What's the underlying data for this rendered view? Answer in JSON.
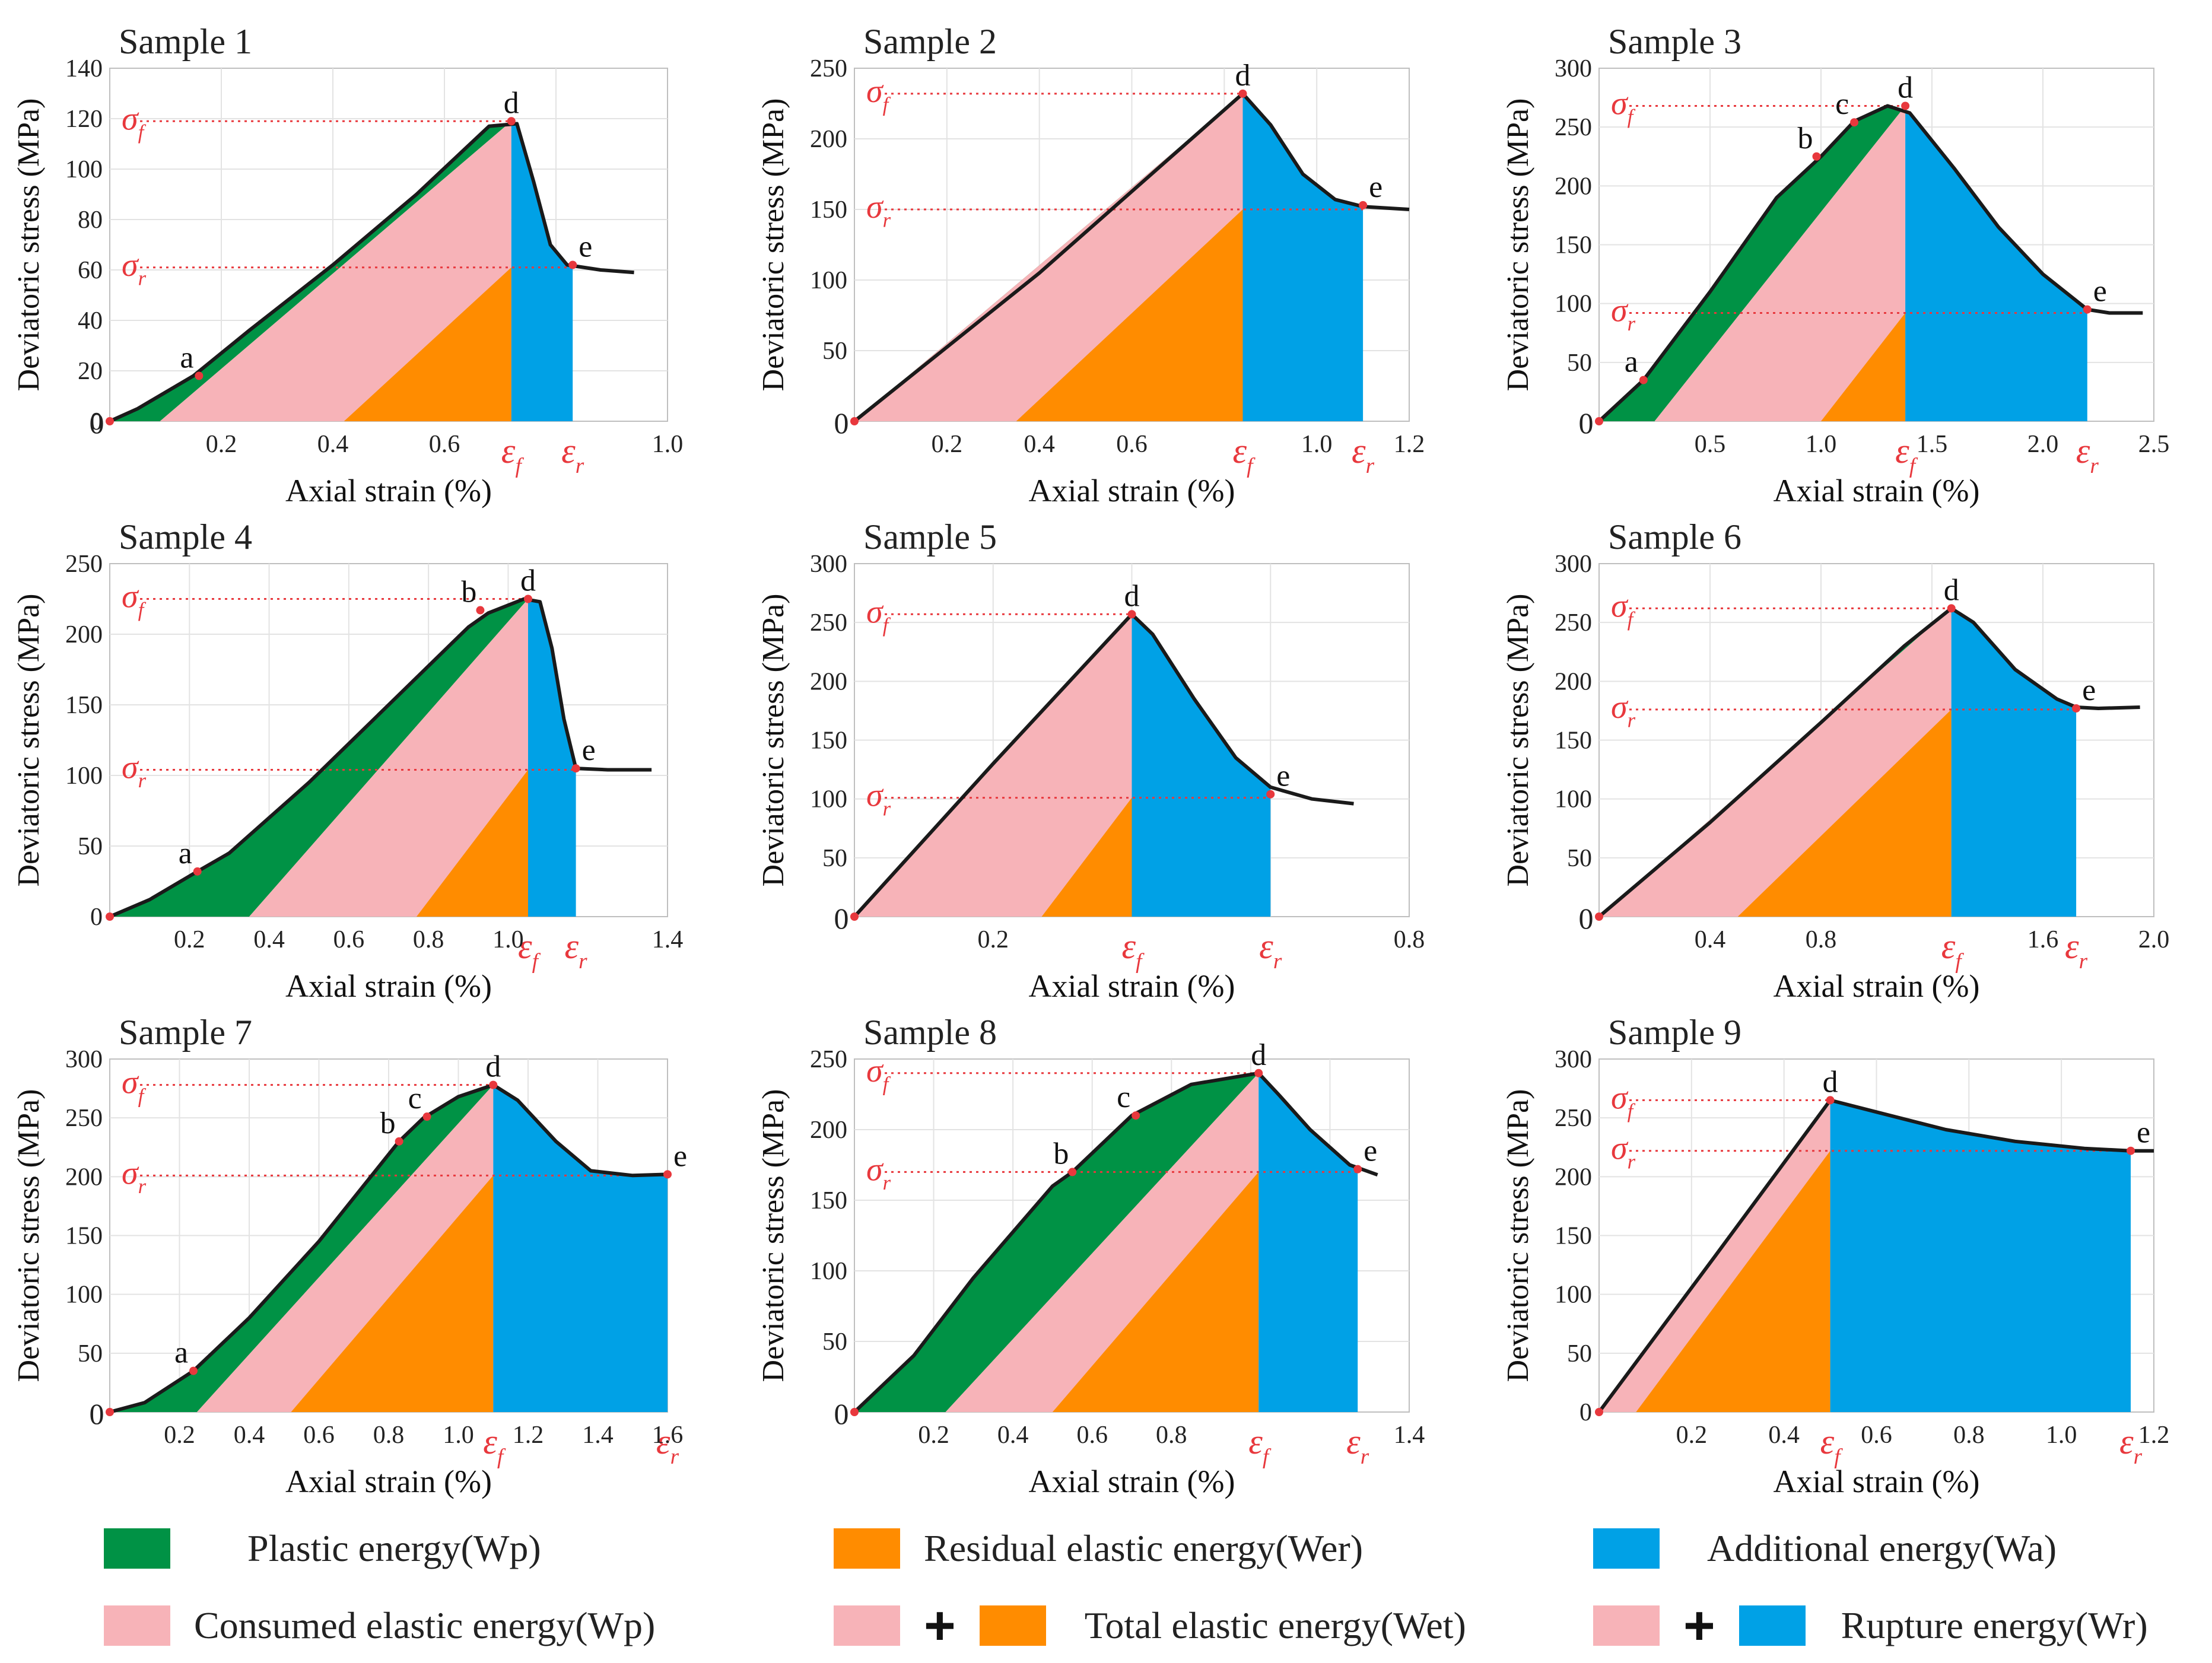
{
  "colors": {
    "plastic": "#009245",
    "consumed": "#f7b3b8",
    "residual": "#ff8c00",
    "additional": "#00a1e6",
    "curve": "#1a1a1a",
    "annotation": "#e8383d"
  },
  "chart_data": [
    {
      "type": "area",
      "title": "Sample 1",
      "xlabel": "Axial strain (%)",
      "ylabel": "Deviatoric stress (MPa)",
      "xlim": [
        0,
        1.0
      ],
      "ylim": [
        0,
        140
      ],
      "xticks": [
        0.2,
        0.4,
        0.6,
        0.8,
        1.0
      ],
      "xtick_labels": [
        "0.2",
        "0.4",
        "0.6",
        "",
        "1.0"
      ],
      "yticks": [
        0,
        20,
        40,
        60,
        80,
        100,
        120,
        140
      ],
      "origin_label": "0",
      "curve": [
        [
          0,
          0
        ],
        [
          0.05,
          5
        ],
        [
          0.15,
          18
        ],
        [
          0.25,
          36
        ],
        [
          0.4,
          62
        ],
        [
          0.55,
          90
        ],
        [
          0.68,
          117
        ],
        [
          0.73,
          118
        ],
        [
          0.76,
          95
        ],
        [
          0.79,
          70
        ],
        [
          0.82,
          62
        ],
        [
          0.88,
          60
        ],
        [
          0.94,
          59
        ]
      ],
      "eps_f": 0.72,
      "sigma_f": 119,
      "eps_r": 0.83,
      "sigma_r": 61,
      "plastic_boundary": [
        [
          0.09,
          0
        ],
        [
          0.72,
          119
        ]
      ],
      "residual_start": 0.42,
      "points": [
        {
          "label": "a",
          "x": 0.16,
          "y": 18
        },
        {
          "label": "d",
          "x": 0.72,
          "y": 119
        },
        {
          "label": "e",
          "x": 0.83,
          "y": 62
        }
      ],
      "annotations": {
        "sigma_f": "σ",
        "sigma_f_sub": "f",
        "sigma_r": "σ",
        "sigma_r_sub": "r",
        "eps_f": "ε",
        "eps_f_sub": "f",
        "eps_r": "ε",
        "eps_r_sub": "r"
      }
    },
    {
      "type": "area",
      "title": "Sample 2",
      "xlabel": "Axial strain (%)",
      "ylabel": "Deviatoric stress (MPa)",
      "xlim": [
        0,
        1.2
      ],
      "ylim": [
        0,
        250
      ],
      "xticks": [
        0.2,
        0.4,
        0.6,
        0.8,
        1.0,
        1.2
      ],
      "xtick_labels": [
        "0.2",
        "0.4",
        "0.6",
        "",
        "1.0",
        "1.2"
      ],
      "yticks": [
        50,
        100,
        150,
        200,
        250
      ],
      "origin_label": "0",
      "curve": [
        [
          0,
          0
        ],
        [
          0.4,
          105
        ],
        [
          0.84,
          232
        ],
        [
          0.9,
          210
        ],
        [
          0.97,
          175
        ],
        [
          1.04,
          157
        ],
        [
          1.1,
          152
        ],
        [
          1.2,
          150
        ]
      ],
      "eps_f": 0.84,
      "sigma_f": 232,
      "eps_r": 1.1,
      "sigma_r": 150,
      "plastic_boundary": [
        [
          0,
          0
        ],
        [
          0.84,
          232
        ]
      ],
      "residual_start": 0.35,
      "points": [
        {
          "label": "d",
          "x": 0.84,
          "y": 232
        },
        {
          "label": "e",
          "x": 1.1,
          "y": 153
        }
      ],
      "annotations": {
        "sigma_f": "σ",
        "sigma_f_sub": "f",
        "sigma_r": "σ",
        "sigma_r_sub": "r",
        "eps_f": "ε",
        "eps_f_sub": "f",
        "eps_r": "ε",
        "eps_r_sub": "r"
      }
    },
    {
      "type": "area",
      "title": "Sample 3",
      "xlabel": "Axial strain (%)",
      "ylabel": "Deviatoric stress (MPa)",
      "xlim": [
        0,
        2.5
      ],
      "ylim": [
        0,
        300
      ],
      "xticks": [
        0.5,
        1.0,
        1.5,
        2.0,
        2.5
      ],
      "xtick_labels": [
        "0.5",
        "1.0",
        "1.5",
        "2.0",
        "2.5"
      ],
      "yticks": [
        50,
        100,
        150,
        200,
        250,
        300
      ],
      "origin_label": "0",
      "curve": [
        [
          0,
          0
        ],
        [
          0.2,
          35
        ],
        [
          0.5,
          110
        ],
        [
          0.8,
          190
        ],
        [
          1.0,
          225
        ],
        [
          1.15,
          255
        ],
        [
          1.3,
          268
        ],
        [
          1.4,
          262
        ],
        [
          1.6,
          215
        ],
        [
          1.8,
          165
        ],
        [
          2.0,
          125
        ],
        [
          2.2,
          95
        ],
        [
          2.3,
          92
        ],
        [
          2.45,
          92
        ]
      ],
      "eps_f": 1.38,
      "sigma_f": 268,
      "eps_r": 2.2,
      "sigma_r": 92,
      "plastic_boundary": [
        [
          0.25,
          0
        ],
        [
          1.38,
          268
        ]
      ],
      "residual_start": 1.0,
      "points": [
        {
          "label": "a",
          "x": 0.2,
          "y": 35
        },
        {
          "label": "b",
          "x": 0.98,
          "y": 225
        },
        {
          "label": "c",
          "x": 1.15,
          "y": 254
        },
        {
          "label": "d",
          "x": 1.38,
          "y": 268
        },
        {
          "label": "e",
          "x": 2.2,
          "y": 95
        }
      ],
      "annotations": {
        "sigma_f": "σ",
        "sigma_f_sub": "f",
        "sigma_r": "σ",
        "sigma_r_sub": "r",
        "eps_f": "ε",
        "eps_f_sub": "f",
        "eps_r": "ε",
        "eps_r_sub": "r"
      }
    },
    {
      "type": "area",
      "title": "Sample 4",
      "xlabel": "Axial strain (%)",
      "ylabel": "Deviatoric stress (MPa)",
      "xlim": [
        0,
        1.4
      ],
      "ylim": [
        0,
        250
      ],
      "xticks": [
        0.2,
        0.4,
        0.6,
        0.8,
        1.0,
        1.4
      ],
      "xtick_labels": [
        "0.2",
        "0.4",
        "0.6",
        "0.8",
        "1.0",
        "1.4"
      ],
      "yticks": [
        0,
        50,
        100,
        150,
        200,
        250
      ],
      "origin_label": "",
      "curve": [
        [
          0,
          0
        ],
        [
          0.1,
          12
        ],
        [
          0.22,
          32
        ],
        [
          0.3,
          45
        ],
        [
          0.5,
          95
        ],
        [
          0.7,
          150
        ],
        [
          0.9,
          205
        ],
        [
          0.95,
          215
        ],
        [
          1.04,
          225
        ],
        [
          1.08,
          223
        ],
        [
          1.11,
          190
        ],
        [
          1.14,
          140
        ],
        [
          1.17,
          105
        ],
        [
          1.25,
          104
        ],
        [
          1.36,
          104
        ]
      ],
      "eps_f": 1.05,
      "sigma_f": 225,
      "eps_r": 1.17,
      "sigma_r": 104,
      "plastic_boundary": [
        [
          0.35,
          0
        ],
        [
          1.05,
          225
        ]
      ],
      "residual_start": 0.77,
      "points": [
        {
          "label": "a",
          "x": 0.22,
          "y": 32
        },
        {
          "label": "b",
          "x": 0.93,
          "y": 217
        },
        {
          "label": "d",
          "x": 1.05,
          "y": 225
        },
        {
          "label": "e",
          "x": 1.17,
          "y": 105
        }
      ],
      "annotations": {
        "sigma_f": "σ",
        "sigma_f_sub": "f",
        "sigma_r": "σ",
        "sigma_r_sub": "r",
        "eps_f": "ε",
        "eps_f_sub": "f",
        "eps_r": "ε",
        "eps_r_sub": "r"
      }
    },
    {
      "type": "area",
      "title": "Sample 5",
      "xlabel": "Axial strain (%)",
      "ylabel": "Deviatoric stress (MPa)",
      "xlim": [
        0,
        0.8
      ],
      "ylim": [
        0,
        300
      ],
      "xticks": [
        0.2,
        0.4,
        0.6,
        0.8
      ],
      "xtick_labels": [
        "0.2",
        "",
        "",
        "0.8"
      ],
      "yticks": [
        50,
        100,
        150,
        200,
        250,
        300
      ],
      "origin_label": "0",
      "curve": [
        [
          0,
          0
        ],
        [
          0.2,
          130
        ],
        [
          0.4,
          257
        ],
        [
          0.43,
          240
        ],
        [
          0.49,
          185
        ],
        [
          0.55,
          135
        ],
        [
          0.6,
          110
        ],
        [
          0.66,
          100
        ],
        [
          0.72,
          96
        ]
      ],
      "eps_f": 0.4,
      "sigma_f": 257,
      "eps_r": 0.6,
      "sigma_r": 101,
      "plastic_boundary": [
        [
          0,
          0
        ],
        [
          0.4,
          257
        ]
      ],
      "residual_start": 0.27,
      "points": [
        {
          "label": "d",
          "x": 0.4,
          "y": 257
        },
        {
          "label": "e",
          "x": 0.6,
          "y": 104
        }
      ],
      "annotations": {
        "sigma_f": "σ",
        "sigma_f_sub": "f",
        "sigma_r": "σ",
        "sigma_r_sub": "r",
        "eps_f": "ε",
        "eps_f_sub": "f",
        "eps_r": "ε",
        "eps_r_sub": "r"
      }
    },
    {
      "type": "area",
      "title": "Sample 6",
      "xlabel": "Axial strain (%)",
      "ylabel": "Deviatoric stress (MPa)",
      "xlim": [
        0,
        2.0
      ],
      "ylim": [
        0,
        300
      ],
      "xticks": [
        0.4,
        0.8,
        1.2,
        1.6,
        2.0
      ],
      "xtick_labels": [
        "0.4",
        "0.8",
        "",
        "1.6",
        "2.0"
      ],
      "yticks": [
        50,
        100,
        150,
        200,
        250,
        300
      ],
      "origin_label": "0",
      "curve": [
        [
          0,
          0
        ],
        [
          0.4,
          80
        ],
        [
          0.8,
          165
        ],
        [
          1.1,
          230
        ],
        [
          1.27,
          262
        ],
        [
          1.35,
          250
        ],
        [
          1.5,
          210
        ],
        [
          1.65,
          185
        ],
        [
          1.72,
          178
        ],
        [
          1.8,
          177
        ],
        [
          1.95,
          178
        ]
      ],
      "eps_f": 1.27,
      "sigma_f": 262,
      "eps_r": 1.72,
      "sigma_r": 176,
      "plastic_boundary": [
        [
          0,
          0
        ],
        [
          1.27,
          262
        ]
      ],
      "residual_start": 0.5,
      "points": [
        {
          "label": "d",
          "x": 1.27,
          "y": 262
        },
        {
          "label": "e",
          "x": 1.72,
          "y": 177
        }
      ],
      "annotations": {
        "sigma_f": "σ",
        "sigma_f_sub": "f",
        "sigma_r": "σ",
        "sigma_r_sub": "r",
        "eps_f": "ε",
        "eps_f_sub": "f",
        "eps_r": "ε",
        "eps_r_sub": "r"
      }
    },
    {
      "type": "area",
      "title": "Sample 7",
      "xlabel": "Axial strain (%)",
      "ylabel": "Deviatoric stress (MPa)",
      "xlim": [
        0,
        1.6
      ],
      "ylim": [
        0,
        300
      ],
      "xticks": [
        0.2,
        0.4,
        0.6,
        0.8,
        1.0,
        1.2,
        1.4,
        1.6
      ],
      "xtick_labels": [
        "0.2",
        "0.4",
        "0.6",
        "0.8",
        "1.0",
        "1.2",
        "1.4",
        "1.6"
      ],
      "yticks": [
        50,
        100,
        150,
        200,
        250,
        300
      ],
      "origin_label": "0",
      "curve": [
        [
          0,
          0
        ],
        [
          0.1,
          8
        ],
        [
          0.24,
          35
        ],
        [
          0.4,
          80
        ],
        [
          0.6,
          145
        ],
        [
          0.83,
          230
        ],
        [
          0.9,
          250
        ],
        [
          1.0,
          268
        ],
        [
          1.1,
          278
        ],
        [
          1.17,
          265
        ],
        [
          1.28,
          230
        ],
        [
          1.38,
          205
        ],
        [
          1.5,
          201
        ],
        [
          1.6,
          202
        ]
      ],
      "eps_f": 1.1,
      "sigma_f": 278,
      "eps_r": 1.6,
      "sigma_r": 201,
      "plastic_boundary": [
        [
          0.25,
          0
        ],
        [
          1.1,
          278
        ]
      ],
      "residual_start": 0.52,
      "points": [
        {
          "label": "a",
          "x": 0.24,
          "y": 35
        },
        {
          "label": "b",
          "x": 0.83,
          "y": 230
        },
        {
          "label": "c",
          "x": 0.91,
          "y": 251
        },
        {
          "label": "d",
          "x": 1.1,
          "y": 278
        },
        {
          "label": "e",
          "x": 1.6,
          "y": 202
        }
      ],
      "annotations": {
        "sigma_f": "σ",
        "sigma_f_sub": "f",
        "sigma_r": "σ",
        "sigma_r_sub": "r",
        "eps_f": "ε",
        "eps_f_sub": "f",
        "eps_r": "ε",
        "eps_r_sub": "r"
      }
    },
    {
      "type": "area",
      "title": "Sample 8",
      "xlabel": "Axial strain (%)",
      "ylabel": "Deviatoric stress (MPa)",
      "xlim": [
        0,
        1.4
      ],
      "ylim": [
        0,
        250
      ],
      "xticks": [
        0.2,
        0.4,
        0.6,
        0.8,
        1.0,
        1.2,
        1.4
      ],
      "xtick_labels": [
        "0.2",
        "0.4",
        "0.6",
        "0.8",
        "",
        "",
        "1.4"
      ],
      "yticks": [
        50,
        100,
        150,
        200,
        250
      ],
      "origin_label": "0",
      "curve": [
        [
          0,
          0
        ],
        [
          0.15,
          40
        ],
        [
          0.3,
          95
        ],
        [
          0.5,
          160
        ],
        [
          0.55,
          170
        ],
        [
          0.7,
          210
        ],
        [
          0.85,
          232
        ],
        [
          1.02,
          240
        ],
        [
          1.07,
          225
        ],
        [
          1.15,
          200
        ],
        [
          1.25,
          175
        ],
        [
          1.32,
          168
        ]
      ],
      "eps_f": 1.02,
      "sigma_f": 240,
      "eps_r": 1.27,
      "sigma_r": 170,
      "plastic_boundary": [
        [
          0.23,
          0
        ],
        [
          1.02,
          240
        ]
      ],
      "residual_start": 0.5,
      "points": [
        {
          "label": "b",
          "x": 0.55,
          "y": 170
        },
        {
          "label": "c",
          "x": 0.71,
          "y": 210
        },
        {
          "label": "d",
          "x": 1.02,
          "y": 240
        },
        {
          "label": "e",
          "x": 1.27,
          "y": 172
        }
      ],
      "annotations": {
        "sigma_f": "σ",
        "sigma_f_sub": "f",
        "sigma_r": "σ",
        "sigma_r_sub": "r",
        "eps_f": "ε",
        "eps_f_sub": "f",
        "eps_r": "ε",
        "eps_r_sub": "r"
      }
    },
    {
      "type": "area",
      "title": "Sample 9",
      "xlabel": "Axial strain (%)",
      "ylabel": "Deviatoric stress (MPa)",
      "xlim": [
        0,
        1.2
      ],
      "ylim": [
        0,
        300
      ],
      "xticks": [
        0.2,
        0.4,
        0.6,
        0.8,
        1.0,
        1.2
      ],
      "xtick_labels": [
        "0.2",
        "0.4",
        "0.6",
        "0.8",
        "1.0",
        "1.2"
      ],
      "yticks": [
        0,
        50,
        100,
        150,
        200,
        250,
        300
      ],
      "origin_label": "",
      "curve": [
        [
          0,
          0
        ],
        [
          0.25,
          132
        ],
        [
          0.5,
          265
        ],
        [
          0.6,
          255
        ],
        [
          0.75,
          240
        ],
        [
          0.9,
          230
        ],
        [
          1.05,
          224
        ],
        [
          1.15,
          222
        ],
        [
          1.2,
          222
        ]
      ],
      "eps_f": 0.5,
      "sigma_f": 265,
      "eps_r": 1.15,
      "sigma_r": 222,
      "plastic_boundary": [
        [
          0,
          0
        ],
        [
          0.5,
          265
        ]
      ],
      "residual_start": 0.08,
      "points": [
        {
          "label": "d",
          "x": 0.5,
          "y": 265
        },
        {
          "label": "e",
          "x": 1.15,
          "y": 222
        }
      ],
      "annotations": {
        "sigma_f": "σ",
        "sigma_f_sub": "f",
        "sigma_r": "σ",
        "sigma_r_sub": "r",
        "eps_f": "ε",
        "eps_f_sub": "f",
        "eps_r": "ε",
        "eps_r_sub": "r"
      }
    }
  ],
  "legend": {
    "plastic": "Plastic energy(Wp)",
    "residual": "Residual elastic energy(Wer)",
    "additional": "Additional energy(Wa)",
    "consumed": "Consumed elastic energy(Wp)",
    "total": "Total elastic energy(Wet)",
    "rupture": "Rupture energy(Wr)",
    "plus": "+"
  }
}
